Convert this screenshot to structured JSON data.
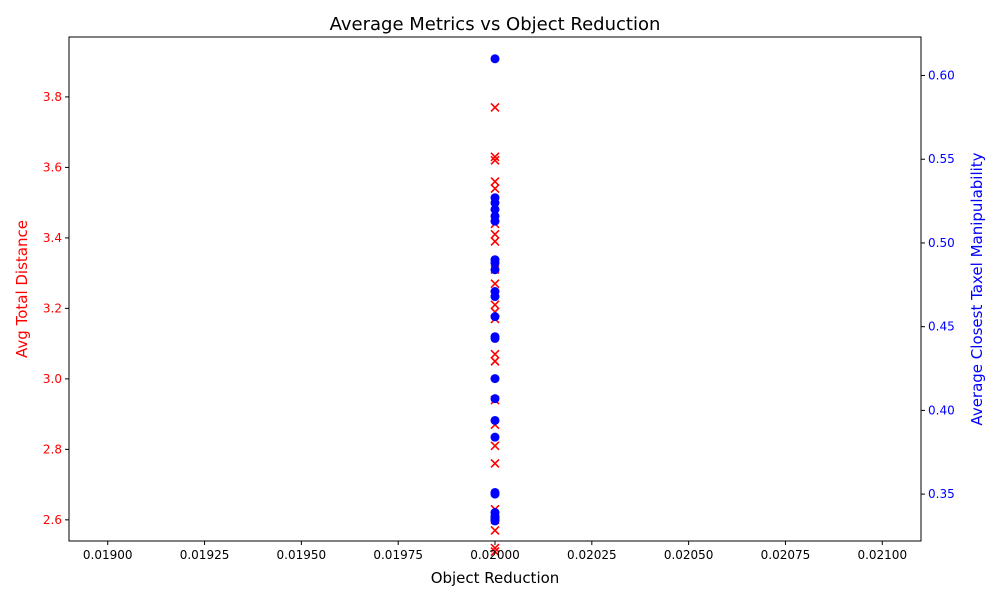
{
  "chart_data": {
    "type": "scatter",
    "title": "Average Metrics vs Object Reduction",
    "xlabel": "Object Reduction",
    "ylabel_left": "Avg Total Distance",
    "ylabel_right": "Average Closest Taxel Manipulability",
    "xlim": [
      0.0189,
      0.0211
    ],
    "ylim_left": [
      2.54,
      3.97
    ],
    "ylim_right": [
      0.322,
      0.623
    ],
    "x_ticks": [
      "0.01900",
      "0.01925",
      "0.01950",
      "0.01975",
      "0.02000",
      "0.02025",
      "0.02050",
      "0.02075",
      "0.02100"
    ],
    "y_left_ticks": [
      "2.6",
      "2.8",
      "3.0",
      "3.2",
      "3.4",
      "3.6",
      "3.8"
    ],
    "y_right_ticks": [
      "0.35",
      "0.40",
      "0.45",
      "0.50",
      "0.55",
      "0.60"
    ],
    "left_color": "#ff0000",
    "right_color": "#0000ff",
    "grid": false,
    "series": [
      {
        "axis": "left",
        "marker": "x",
        "color": "#ff0000",
        "x": [
          0.02,
          0.02,
          0.02,
          0.02,
          0.02,
          0.02,
          0.02,
          0.02,
          0.02,
          0.02,
          0.02,
          0.02,
          0.02,
          0.02,
          0.02,
          0.02,
          0.02,
          0.02,
          0.02,
          0.02,
          0.02,
          0.02,
          0.02,
          0.02,
          0.02,
          0.02
        ],
        "y": [
          3.77,
          3.63,
          3.62,
          3.56,
          3.54,
          3.47,
          3.44,
          3.41,
          3.39,
          3.31,
          3.27,
          3.21,
          3.19,
          3.17,
          3.07,
          3.05,
          2.94,
          2.87,
          2.81,
          2.76,
          2.63,
          2.61,
          2.6,
          2.57,
          2.52,
          2.51
        ]
      },
      {
        "axis": "right",
        "marker": "o",
        "color": "#0000ff",
        "x": [
          0.02,
          0.02,
          0.02,
          0.02,
          0.02,
          0.02,
          0.02,
          0.02,
          0.02,
          0.02,
          0.02,
          0.02,
          0.02,
          0.02,
          0.02,
          0.02,
          0.02,
          0.02,
          0.02,
          0.02,
          0.02,
          0.02,
          0.02,
          0.02,
          0.02
        ],
        "y": [
          0.61,
          0.527,
          0.524,
          0.52,
          0.516,
          0.513,
          0.49,
          0.488,
          0.484,
          0.471,
          0.468,
          0.456,
          0.444,
          0.443,
          0.419,
          0.407,
          0.394,
          0.384,
          0.351,
          0.35,
          0.339,
          0.337,
          0.336,
          0.335,
          0.334
        ]
      }
    ]
  }
}
